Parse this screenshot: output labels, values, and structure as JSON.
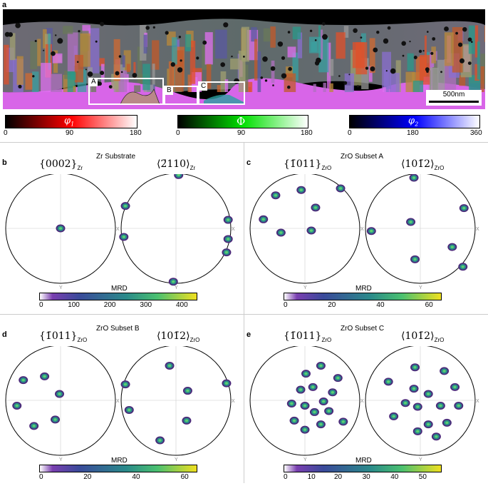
{
  "panels": {
    "a": {
      "label": "a",
      "regions": [
        "A",
        "B",
        "C"
      ],
      "scalebar": "500nm",
      "euler": [
        {
          "symbol": "φ",
          "sub": "1",
          "ticks": [
            "0",
            "90",
            "180"
          ],
          "color": "#ff0000"
        },
        {
          "symbol": "Φ",
          "sub": "",
          "ticks": [
            "0",
            "90",
            "180"
          ],
          "color": "#00d000"
        },
        {
          "symbol": "φ",
          "sub": "2",
          "ticks": [
            "0",
            "180",
            "360"
          ],
          "color": "#0000ff"
        }
      ]
    },
    "b": {
      "label": "b",
      "title": "Zr Substrate",
      "left": {
        "plane": "{0002}",
        "sub": "Zr"
      },
      "right": {
        "plane": "⟨2̄110⟩",
        "sub": "Zr"
      },
      "mrd_label": "MRD",
      "ticks": [
        "0",
        "100",
        "200",
        "300",
        "400"
      ]
    },
    "c": {
      "label": "c",
      "title": "ZrO Subset A",
      "left": {
        "plane": "{1̄011}",
        "sub": "ZrO"
      },
      "right": {
        "plane": "⟨101̄2⟩",
        "sub": "ZrO"
      },
      "mrd_label": "MRD",
      "ticks": [
        "0",
        "20",
        "40",
        "60"
      ]
    },
    "d": {
      "label": "d",
      "title": "ZrO Subset B",
      "left": {
        "plane": "{1̄011}",
        "sub": "ZrO"
      },
      "right": {
        "plane": "⟨101̄2⟩",
        "sub": "ZrO"
      },
      "mrd_label": "MRD",
      "ticks": [
        "0",
        "20",
        "40",
        "60"
      ]
    },
    "e": {
      "label": "e",
      "title": "ZrO Subset C",
      "left": {
        "plane": "{1̄011}",
        "sub": "ZrO"
      },
      "right": {
        "plane": "⟨101̄2⟩",
        "sub": "ZrO"
      },
      "mrd_label": "MRD",
      "ticks": [
        "0",
        "10",
        "20",
        "30",
        "40",
        "50"
      ]
    }
  },
  "axes": {
    "x": "X",
    "y": "Y"
  }
}
